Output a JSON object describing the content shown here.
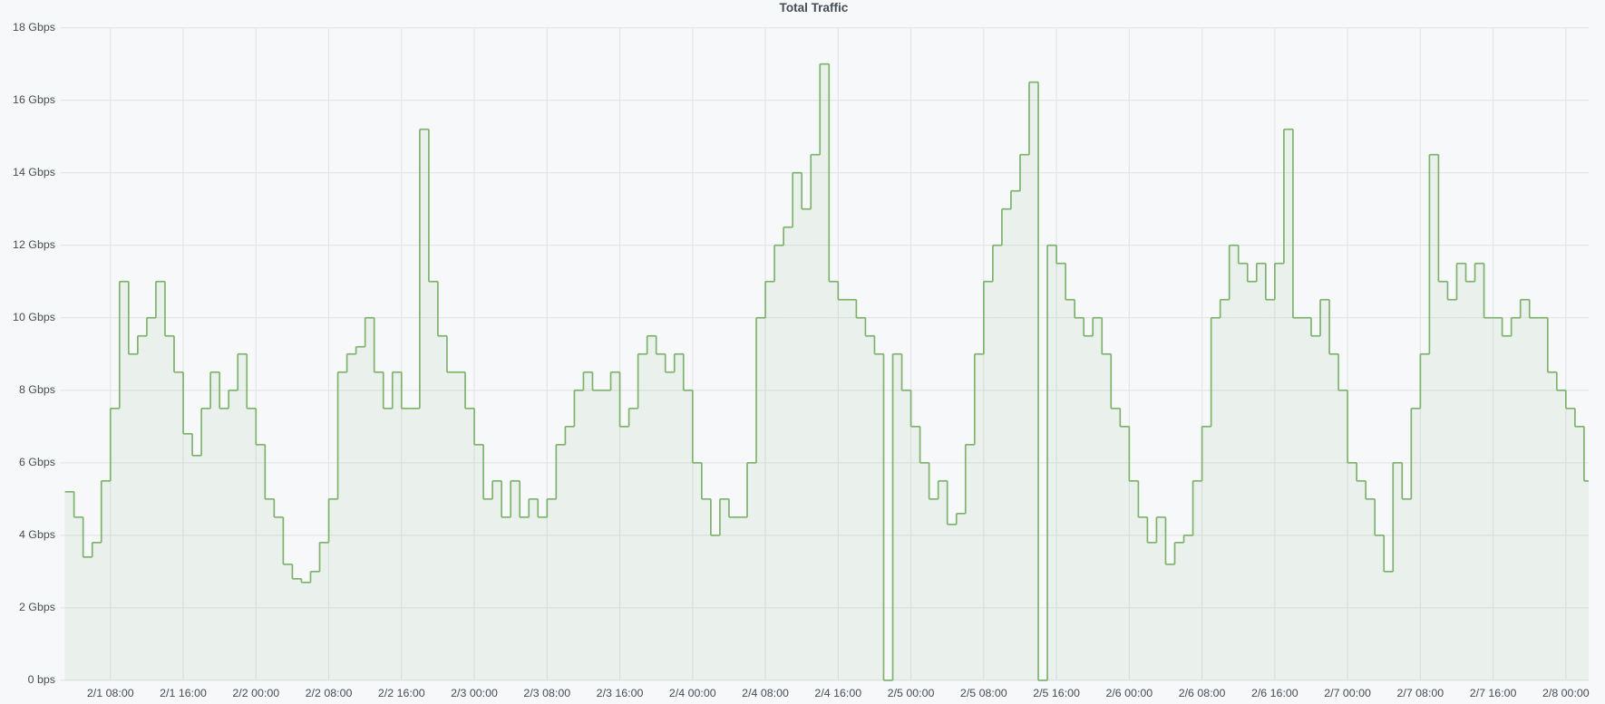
{
  "chart_data": {
    "type": "line",
    "step": true,
    "title": "Total Traffic",
    "color": "#7eb26d",
    "grid": true,
    "x": [
      "2/1 03:00",
      "2/1 04:00",
      "2/1 05:00",
      "2/1 06:00",
      "2/1 07:00",
      "2/1 08:00",
      "2/1 09:00",
      "2/1 10:00",
      "2/1 11:00",
      "2/1 12:00",
      "2/1 13:00",
      "2/1 14:00",
      "2/1 15:00",
      "2/1 16:00",
      "2/1 17:00",
      "2/1 18:00",
      "2/1 19:00",
      "2/1 20:00",
      "2/1 21:00",
      "2/1 22:00",
      "2/1 23:00",
      "2/2 00:00",
      "2/2 01:00",
      "2/2 02:00",
      "2/2 03:00",
      "2/2 04:00",
      "2/2 05:00",
      "2/2 06:00",
      "2/2 07:00",
      "2/2 08:00",
      "2/2 09:00",
      "2/2 10:00",
      "2/2 11:00",
      "2/2 12:00",
      "2/2 13:00",
      "2/2 14:00",
      "2/2 15:00",
      "2/2 16:00",
      "2/2 17:00",
      "2/2 18:00",
      "2/2 19:00",
      "2/2 20:00",
      "2/2 21:00",
      "2/2 22:00",
      "2/2 23:00",
      "2/3 00:00",
      "2/3 01:00",
      "2/3 02:00",
      "2/3 03:00",
      "2/3 04:00",
      "2/3 05:00",
      "2/3 06:00",
      "2/3 07:00",
      "2/3 08:00",
      "2/3 09:00",
      "2/3 10:00",
      "2/3 11:00",
      "2/3 12:00",
      "2/3 13:00",
      "2/3 14:00",
      "2/3 15:00",
      "2/3 16:00",
      "2/3 17:00",
      "2/3 18:00",
      "2/3 19:00",
      "2/3 20:00",
      "2/3 21:00",
      "2/3 22:00",
      "2/3 23:00",
      "2/4 00:00",
      "2/4 01:00",
      "2/4 02:00",
      "2/4 03:00",
      "2/4 04:00",
      "2/4 05:00",
      "2/4 06:00",
      "2/4 07:00",
      "2/4 08:00",
      "2/4 09:00",
      "2/4 10:00",
      "2/4 11:00",
      "2/4 12:00",
      "2/4 13:00",
      "2/4 14:00",
      "2/4 15:00",
      "2/4 16:00",
      "2/4 17:00",
      "2/4 18:00",
      "2/4 19:00",
      "2/4 20:00",
      "2/4 21:00",
      "2/4 22:00",
      "2/4 23:00",
      "2/5 00:00",
      "2/5 01:00",
      "2/5 02:00",
      "2/5 03:00",
      "2/5 04:00",
      "2/5 05:00",
      "2/5 06:00",
      "2/5 07:00",
      "2/5 08:00",
      "2/5 09:00",
      "2/5 10:00",
      "2/5 11:00",
      "2/5 12:00",
      "2/5 13:00",
      "2/5 14:00",
      "2/5 15:00",
      "2/5 16:00",
      "2/5 17:00",
      "2/5 18:00",
      "2/5 19:00",
      "2/5 20:00",
      "2/5 21:00",
      "2/5 22:00",
      "2/5 23:00",
      "2/6 00:00",
      "2/6 01:00",
      "2/6 02:00",
      "2/6 03:00",
      "2/6 04:00",
      "2/6 05:00",
      "2/6 06:00",
      "2/6 07:00",
      "2/6 08:00",
      "2/6 09:00",
      "2/6 10:00",
      "2/6 11:00",
      "2/6 12:00",
      "2/6 13:00",
      "2/6 14:00",
      "2/6 15:00",
      "2/6 16:00",
      "2/6 17:00",
      "2/6 18:00",
      "2/6 19:00",
      "2/6 20:00",
      "2/6 21:00",
      "2/6 22:00",
      "2/6 23:00",
      "2/7 00:00",
      "2/7 01:00",
      "2/7 02:00",
      "2/7 03:00",
      "2/7 04:00",
      "2/7 05:00",
      "2/7 06:00",
      "2/7 07:00",
      "2/7 08:00",
      "2/7 09:00",
      "2/7 10:00",
      "2/7 11:00",
      "2/7 12:00",
      "2/7 13:00",
      "2/7 14:00",
      "2/7 15:00",
      "2/7 16:00",
      "2/7 17:00",
      "2/7 18:00",
      "2/7 19:00",
      "2/7 20:00",
      "2/7 21:00",
      "2/7 22:00",
      "2/7 23:00",
      "2/8 00:00",
      "2/8 01:00",
      "2/8 02:00"
    ],
    "values": [
      5.2,
      4.5,
      3.4,
      3.8,
      5.5,
      7.5,
      11,
      9,
      9.5,
      10,
      11,
      9.5,
      8.5,
      6.8,
      6.2,
      7.5,
      8.5,
      7.5,
      8,
      9,
      7.5,
      6.5,
      5,
      4.5,
      3.2,
      2.8,
      2.7,
      3,
      3.8,
      5,
      8.5,
      9,
      9.2,
      10,
      8.5,
      7.5,
      8.5,
      7.5,
      7.5,
      15.2,
      11,
      9.5,
      8.5,
      8.5,
      7.5,
      6.5,
      5,
      5.5,
      4.5,
      5.5,
      4.5,
      5,
      4.5,
      5,
      6.5,
      7,
      8,
      8.5,
      8,
      8,
      8.5,
      7,
      7.5,
      9,
      9.5,
      9,
      8.5,
      9,
      8,
      6,
      5,
      4,
      5,
      4.5,
      4.5,
      6,
      10,
      11,
      12,
      12.5,
      14,
      13,
      14.5,
      17,
      11,
      10.5,
      10.5,
      10,
      9.5,
      9,
      0,
      9,
      8,
      7,
      6,
      5,
      5.5,
      4.3,
      4.6,
      6.5,
      9,
      11,
      12,
      13,
      13.5,
      14.5,
      16.5,
      0,
      12,
      11.5,
      10.5,
      10,
      9.5,
      10,
      9,
      7.5,
      7,
      5.5,
      4.5,
      3.8,
      4.5,
      3.2,
      3.8,
      4,
      5.5,
      7,
      10,
      10.5,
      12,
      11.5,
      11,
      11.5,
      10.5,
      11.5,
      15.2,
      10,
      10,
      9.5,
      10.5,
      9,
      8,
      6,
      5.5,
      5,
      4,
      3,
      6,
      5,
      7.5,
      9,
      14.5,
      11,
      10.5,
      11.5,
      11,
      11.5,
      10,
      10,
      9.5,
      10,
      10.5,
      10,
      10,
      8.5,
      8,
      7.5,
      7,
      5.5
    ],
    "xlim": [
      "2/1 02:30",
      "2/8 02:30"
    ],
    "xticks": [
      "2/1 08:00",
      "2/1 16:00",
      "2/2 00:00",
      "2/2 08:00",
      "2/2 16:00",
      "2/3 00:00",
      "2/3 08:00",
      "2/3 16:00",
      "2/4 00:00",
      "2/4 08:00",
      "2/4 16:00",
      "2/5 00:00",
      "2/5 08:00",
      "2/5 16:00",
      "2/6 00:00",
      "2/6 08:00",
      "2/6 16:00",
      "2/7 00:00",
      "2/7 08:00",
      "2/7 16:00",
      "2/8 00:00"
    ],
    "ylim": [
      0,
      18
    ],
    "yticks": [
      {
        "value": 0,
        "label": "0 bps"
      },
      {
        "value": 2,
        "label": "2 Gbps"
      },
      {
        "value": 4,
        "label": "4 Gbps"
      },
      {
        "value": 6,
        "label": "6 Gbps"
      },
      {
        "value": 8,
        "label": "8 Gbps"
      },
      {
        "value": 10,
        "label": "10 Gbps"
      },
      {
        "value": 12,
        "label": "12 Gbps"
      },
      {
        "value": 14,
        "label": "14 Gbps"
      },
      {
        "value": 16,
        "label": "16 Gbps"
      },
      {
        "value": 18,
        "label": "18 Gbps"
      }
    ]
  }
}
